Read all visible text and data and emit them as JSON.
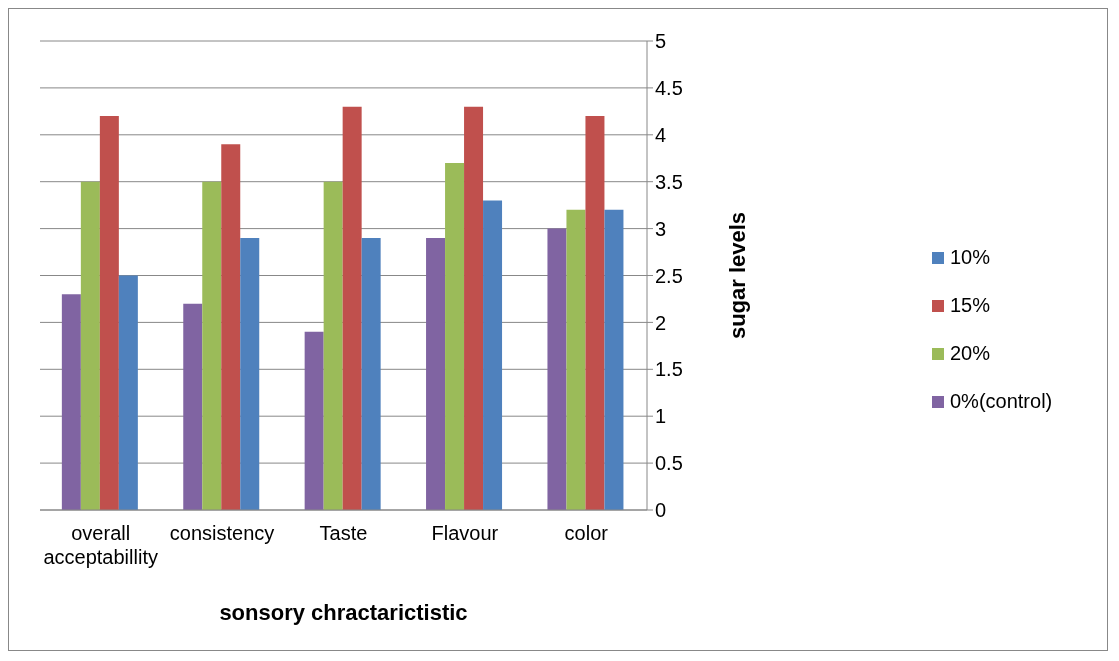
{
  "chart_data": {
    "type": "bar",
    "xlabel": "sonsory chractarictistic",
    "ylabel": "sugar levels",
    "categories": [
      "overall acceptabillity",
      "consistency",
      "Taste",
      "Flavour",
      "color"
    ],
    "series": [
      {
        "name": "0%(control)",
        "color": "#8064a2",
        "values": [
          2.3,
          2.2,
          1.9,
          2.9,
          3.0
        ]
      },
      {
        "name": "20%",
        "color": "#9bbb59",
        "values": [
          3.5,
          3.5,
          3.5,
          3.7,
          3.2
        ]
      },
      {
        "name": "15%",
        "color": "#c0504d",
        "values": [
          4.2,
          3.9,
          4.3,
          4.3,
          4.2
        ]
      },
      {
        "name": "10%",
        "color": "#4f81bd",
        "values": [
          2.5,
          2.9,
          2.9,
          3.3,
          3.2
        ]
      }
    ],
    "ylim": [
      0,
      5
    ],
    "yticks": [
      0,
      0.5,
      1,
      1.5,
      2,
      2.5,
      3,
      3.5,
      4,
      4.5,
      5
    ],
    "grid": "y",
    "legend": "right"
  }
}
